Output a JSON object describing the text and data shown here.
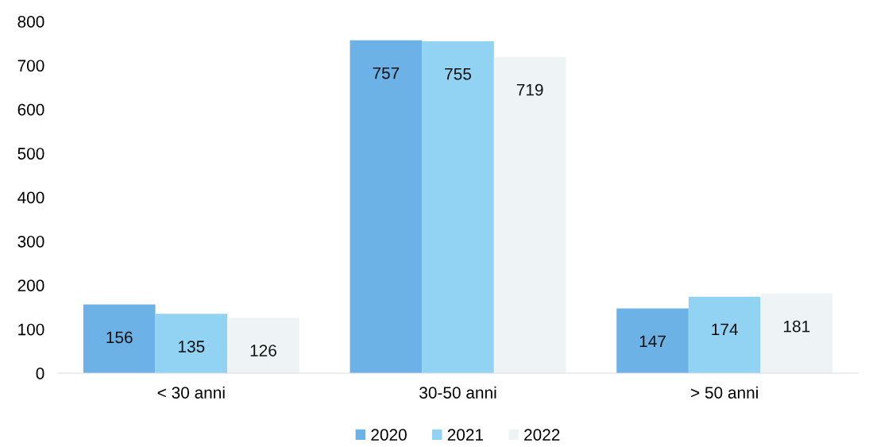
{
  "chart_data": {
    "type": "bar",
    "categories": [
      "< 30 anni",
      "30-50 anni",
      "> 50 anni"
    ],
    "series": [
      {
        "name": "2020",
        "color": "#6cb2e6",
        "values": [
          156,
          757,
          147
        ]
      },
      {
        "name": "2021",
        "color": "#92d2f3",
        "values": [
          135,
          755,
          174
        ]
      },
      {
        "name": "2022",
        "color": "#eef4f6",
        "values": [
          126,
          719,
          181
        ]
      }
    ],
    "ylim": [
      0,
      800
    ],
    "yticks": [
      0,
      100,
      200,
      300,
      400,
      500,
      600,
      700,
      800
    ],
    "grid": false,
    "legend": "bottom",
    "data_labels": true
  }
}
